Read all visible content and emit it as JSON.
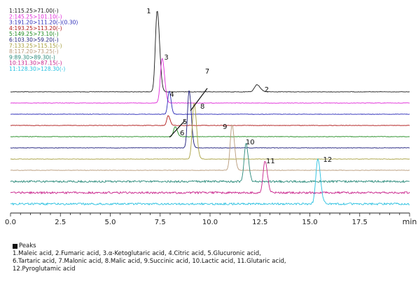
{
  "chart_data": {
    "type": "line",
    "xlabel": "min",
    "xlim": [
      0,
      20
    ],
    "xticks": [
      "0.0",
      "2.5",
      "5.0",
      "7.5",
      "10.0",
      "12.5",
      "15.0",
      "17.5"
    ],
    "grid": false,
    "legend_position": "top-left",
    "series": [
      {
        "name": "1:115.25>71.00(-)",
        "color": "#1a1a1a",
        "peaks": [
          {
            "rt": 7.35,
            "height": 116,
            "width": 0.09
          },
          {
            "rt": 12.35,
            "height": 10,
            "width": 0.12
          }
        ]
      },
      {
        "name": "2:145.25>101.10(-)",
        "color": "#e02ad8",
        "peaks": [
          {
            "rt": 7.6,
            "height": 64,
            "width": 0.09
          }
        ]
      },
      {
        "name": "3:191.20>111.20(-)(0.30)",
        "color": "#2a2ab8",
        "peaks": [
          {
            "rt": 7.95,
            "height": 33,
            "width": 0.07
          }
        ]
      },
      {
        "name": "4:193.25>113.20(-)",
        "color": "#b01818",
        "peaks": [
          {
            "rt": 7.9,
            "height": 14,
            "width": 0.07
          }
        ]
      },
      {
        "name": "5:149.25>73.10(-)",
        "color": "#1e8a1e",
        "peaks": [
          {
            "rt": 8.25,
            "height": 14,
            "width": 0.08
          }
        ]
      },
      {
        "name": "6:103.30>59.20(-)",
        "color": "#1a1a7a",
        "peaks": [
          {
            "rt": 8.95,
            "height": 82,
            "width": 0.08
          }
        ]
      },
      {
        "name": "7:133.25>115.15(-)",
        "color": "#a8a040",
        "peaks": [
          {
            "rt": 9.2,
            "height": 80,
            "width": 0.09
          }
        ]
      },
      {
        "name": "8:117.20>73.25(-)",
        "color": "#b89a7a",
        "peaks": [
          {
            "rt": 11.1,
            "height": 65,
            "width": 0.09
          }
        ]
      },
      {
        "name": "9:89.30>89.30(-)",
        "color": "#2a8a7a",
        "peaks": [
          {
            "rt": 11.8,
            "height": 55,
            "width": 0.09
          }
        ]
      },
      {
        "name": "10:131.30>87.15(-)",
        "color": "#c8208a",
        "peaks": [
          {
            "rt": 12.75,
            "height": 46,
            "width": 0.09
          }
        ]
      },
      {
        "name": "11:128.30>128.30(-)",
        "color": "#28c0e0",
        "peaks": [
          {
            "rt": 15.4,
            "height": 64,
            "width": 0.1
          }
        ]
      }
    ],
    "peak_labels": [
      "1",
      "2",
      "3",
      "4",
      "5",
      "6",
      "7",
      "8",
      "9",
      "10",
      "11",
      "12"
    ]
  },
  "peaks_section": {
    "title": "Peaks",
    "lines": [
      "1.Maleic acid, 2.Fumaric acid, 3.α-Ketoglutaric acid, 4.Citric acid, 5.Glucuronic acid,",
      "6.Tartaric acid, 7.Malonic acid, 8.Malic acid, 9.Succinic acid, 10.Lactic acid, 11.Glutaric acid,",
      "12.Pyroglutamic acid"
    ]
  }
}
